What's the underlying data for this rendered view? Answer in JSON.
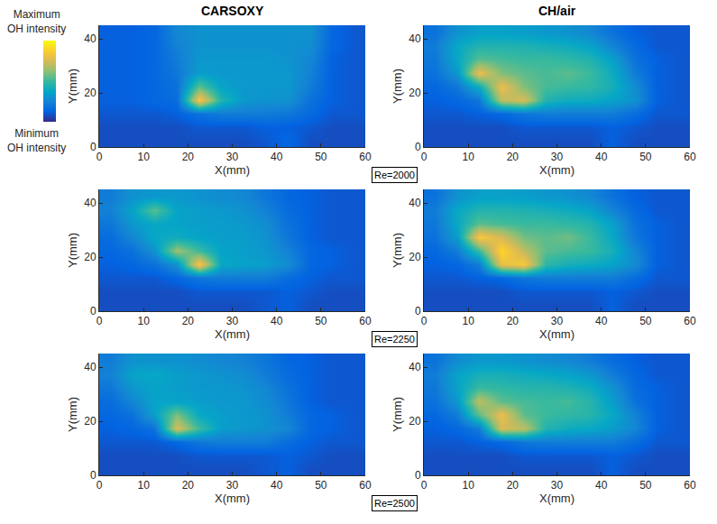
{
  "chart_data": {
    "type": "heatmap",
    "column_titles": [
      "CARSOXY",
      "CH/air"
    ],
    "row_labels": [
      "Re=2000",
      "Re=2250",
      "Re=2500"
    ],
    "x_label": "X(mm)",
    "y_label": "Y(mm)",
    "xlim": [
      0,
      60
    ],
    "xticks": [
      0,
      10,
      20,
      30,
      40,
      50,
      60
    ],
    "ylim": [
      0,
      45
    ],
    "yticks": [
      0,
      20,
      40
    ],
    "x": [
      2.5,
      7.5,
      12.5,
      17.5,
      22.5,
      27.5,
      32.5,
      37.5,
      42.5,
      47.5,
      52.5,
      57.5
    ],
    "y": [
      2.5,
      7.5,
      12.5,
      17.5,
      22.5,
      27.5,
      32.5,
      37.5,
      42.5
    ],
    "colorbar": {
      "range": [
        0,
        100
      ],
      "max_label": "Maximum OH intensity",
      "min_label": "Minimum OH intensity"
    },
    "panels": [
      {
        "column": "CARSOXY",
        "row": "Re=2000",
        "cells": [
          [
            8,
            8,
            8,
            8,
            8,
            8,
            8,
            10,
            14,
            8,
            8,
            8
          ],
          [
            8,
            8,
            8,
            8,
            10,
            10,
            10,
            12,
            12,
            10,
            8,
            8
          ],
          [
            10,
            10,
            10,
            12,
            18,
            22,
            22,
            22,
            20,
            15,
            10,
            10
          ],
          [
            12,
            12,
            14,
            16,
            85,
            45,
            32,
            30,
            30,
            18,
            12,
            10
          ],
          [
            12,
            12,
            14,
            18,
            55,
            36,
            32,
            32,
            32,
            22,
            12,
            10
          ],
          [
            12,
            12,
            14,
            20,
            34,
            32,
            32,
            32,
            32,
            24,
            12,
            10
          ],
          [
            12,
            12,
            14,
            22,
            32,
            32,
            32,
            32,
            30,
            26,
            12,
            10
          ],
          [
            12,
            12,
            14,
            24,
            30,
            30,
            30,
            30,
            30,
            28,
            14,
            10
          ],
          [
            12,
            12,
            14,
            26,
            30,
            30,
            30,
            30,
            30,
            30,
            14,
            10
          ]
        ]
      },
      {
        "column": "CH/air",
        "row": "Re=2000",
        "cells": [
          [
            8,
            8,
            8,
            8,
            8,
            8,
            8,
            8,
            12,
            8,
            8,
            8
          ],
          [
            8,
            8,
            8,
            8,
            10,
            10,
            10,
            10,
            12,
            10,
            8,
            8
          ],
          [
            10,
            10,
            12,
            14,
            20,
            22,
            22,
            22,
            22,
            16,
            10,
            10
          ],
          [
            12,
            14,
            20,
            70,
            75,
            45,
            40,
            40,
            36,
            30,
            12,
            10
          ],
          [
            14,
            20,
            40,
            80,
            60,
            52,
            50,
            48,
            42,
            28,
            12,
            10
          ],
          [
            18,
            32,
            80,
            60,
            55,
            52,
            55,
            50,
            40,
            22,
            12,
            10
          ],
          [
            20,
            38,
            55,
            52,
            50,
            50,
            48,
            45,
            35,
            18,
            12,
            10
          ],
          [
            22,
            38,
            45,
            45,
            44,
            42,
            40,
            36,
            25,
            15,
            10,
            10
          ],
          [
            18,
            30,
            35,
            35,
            34,
            32,
            30,
            26,
            18,
            12,
            10,
            10
          ]
        ]
      },
      {
        "column": "CARSOXY",
        "row": "Re=2250",
        "cells": [
          [
            8,
            8,
            8,
            8,
            8,
            8,
            8,
            10,
            12,
            8,
            8,
            8
          ],
          [
            8,
            8,
            8,
            8,
            10,
            10,
            10,
            10,
            12,
            10,
            8,
            8
          ],
          [
            10,
            10,
            10,
            14,
            20,
            22,
            22,
            22,
            16,
            12,
            10,
            10
          ],
          [
            12,
            14,
            18,
            30,
            85,
            38,
            36,
            34,
            28,
            14,
            12,
            10
          ],
          [
            14,
            18,
            30,
            65,
            50,
            36,
            34,
            32,
            24,
            14,
            12,
            10
          ],
          [
            16,
            26,
            38,
            40,
            36,
            34,
            34,
            30,
            20,
            12,
            10,
            10
          ],
          [
            20,
            32,
            38,
            36,
            34,
            34,
            32,
            28,
            18,
            12,
            10,
            10
          ],
          [
            24,
            36,
            55,
            36,
            34,
            32,
            30,
            24,
            16,
            12,
            10,
            10
          ],
          [
            22,
            30,
            32,
            32,
            30,
            28,
            26,
            20,
            14,
            12,
            10,
            10
          ]
        ]
      },
      {
        "column": "CH/air",
        "row": "Re=2250",
        "cells": [
          [
            8,
            8,
            8,
            8,
            8,
            8,
            8,
            8,
            12,
            8,
            8,
            8
          ],
          [
            8,
            8,
            8,
            8,
            10,
            10,
            10,
            10,
            12,
            10,
            8,
            8
          ],
          [
            10,
            10,
            12,
            14,
            20,
            22,
            22,
            22,
            22,
            16,
            10,
            10
          ],
          [
            12,
            14,
            22,
            80,
            85,
            48,
            42,
            40,
            36,
            28,
            12,
            10
          ],
          [
            14,
            22,
            50,
            90,
            70,
            55,
            52,
            50,
            42,
            26,
            12,
            10
          ],
          [
            18,
            34,
            85,
            75,
            58,
            55,
            58,
            50,
            38,
            20,
            12,
            10
          ],
          [
            20,
            38,
            55,
            52,
            50,
            50,
            48,
            45,
            35,
            18,
            12,
            10
          ],
          [
            22,
            38,
            45,
            45,
            44,
            42,
            40,
            36,
            25,
            15,
            10,
            10
          ],
          [
            18,
            30,
            35,
            35,
            34,
            32,
            30,
            26,
            18,
            12,
            10,
            10
          ]
        ]
      },
      {
        "column": "CARSOXY",
        "row": "Re=2500",
        "cells": [
          [
            8,
            8,
            8,
            8,
            8,
            8,
            8,
            10,
            12,
            8,
            8,
            8
          ],
          [
            8,
            8,
            8,
            8,
            10,
            10,
            10,
            10,
            12,
            10,
            8,
            8
          ],
          [
            10,
            10,
            10,
            14,
            20,
            22,
            22,
            22,
            16,
            12,
            10,
            10
          ],
          [
            12,
            14,
            18,
            75,
            50,
            34,
            32,
            30,
            26,
            14,
            12,
            10
          ],
          [
            14,
            18,
            35,
            60,
            38,
            34,
            32,
            30,
            22,
            14,
            12,
            10
          ],
          [
            16,
            26,
            36,
            36,
            34,
            32,
            32,
            28,
            20,
            12,
            10,
            10
          ],
          [
            20,
            32,
            36,
            34,
            32,
            32,
            30,
            26,
            18,
            12,
            10,
            10
          ],
          [
            24,
            36,
            38,
            34,
            32,
            30,
            28,
            22,
            16,
            12,
            10,
            10
          ],
          [
            22,
            30,
            30,
            30,
            28,
            26,
            24,
            20,
            14,
            12,
            10,
            10
          ]
        ]
      },
      {
        "column": "CH/air",
        "row": "Re=2500",
        "cells": [
          [
            8,
            8,
            8,
            8,
            8,
            8,
            8,
            8,
            12,
            8,
            8,
            8
          ],
          [
            8,
            8,
            8,
            8,
            10,
            10,
            10,
            10,
            12,
            10,
            8,
            8
          ],
          [
            10,
            10,
            12,
            14,
            20,
            22,
            22,
            22,
            22,
            16,
            10,
            10
          ],
          [
            12,
            14,
            22,
            75,
            70,
            45,
            40,
            38,
            34,
            26,
            12,
            10
          ],
          [
            14,
            22,
            55,
            80,
            55,
            50,
            48,
            46,
            38,
            24,
            12,
            10
          ],
          [
            18,
            32,
            70,
            55,
            52,
            50,
            52,
            46,
            34,
            18,
            12,
            10
          ],
          [
            20,
            36,
            50,
            48,
            46,
            46,
            44,
            40,
            30,
            16,
            12,
            10
          ],
          [
            22,
            36,
            42,
            42,
            40,
            38,
            36,
            32,
            22,
            14,
            10,
            10
          ],
          [
            18,
            28,
            32,
            32,
            30,
            28,
            26,
            22,
            16,
            12,
            10,
            10
          ]
        ]
      }
    ]
  }
}
